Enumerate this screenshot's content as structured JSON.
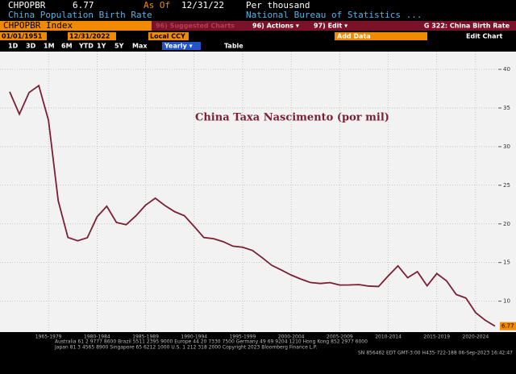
{
  "header": {
    "ticker": "CHPOPBR",
    "last": "6.77",
    "as_of_label": "As Of",
    "as_of": "12/31/22",
    "units": "Per thousand",
    "name": "China Population Birth Rate",
    "source": "National Bureau of Statistics ...",
    "security": "CHPOPBR Index",
    "suggested": "96) Suggested Charts",
    "actions": "96) Actions ▾",
    "edit": "97) Edit ▾",
    "page": "G 322: China Birth Rate"
  },
  "toolbar": {
    "start": "01/01/1951",
    "end": "12/31/2022",
    "currency": "Local CCY",
    "periods": [
      "1D",
      "3D",
      "1M",
      "6M",
      "YTD",
      "1Y",
      "5Y",
      "Max"
    ],
    "frequency": "Yearly ▾",
    "table": "Table",
    "add_data": "Add Data",
    "edit_chart": "Edit Chart"
  },
  "footer": {
    "line1": "Australia 61 2 9777 8600 Brazil 5511 2395 9000 Europe 44 20 7330 7500 Germany 49 69 9204 1210 Hong Kong 852 2977 6000",
    "line2": "Japan 81 3 4565 8900 Singapore 65 6212 1000 U.S. 1 212 318 2000 Copyright 2023 Bloomberg Finance L.P.",
    "line3": "SN 856462 EDT GMT-3:00 H435-722-188 06-Sep-2023 16:42:47"
  },
  "chart_data": {
    "type": "line",
    "annotation": "China Taxa Nascimento (por mil)",
    "categories": [
      null,
      null,
      null,
      null,
      "1965-1979",
      null,
      null,
      null,
      null,
      "1980-1984",
      null,
      null,
      null,
      null,
      "1985-1989",
      null,
      null,
      null,
      null,
      "1990-1994",
      null,
      null,
      null,
      null,
      "1995-1999",
      null,
      null,
      null,
      null,
      "2000-2004",
      null,
      null,
      null,
      null,
      "2005-2009",
      null,
      null,
      null,
      null,
      "2010-2014",
      null,
      null,
      null,
      null,
      "2015-2019",
      null,
      null,
      null,
      "2020-2024",
      null,
      null
    ],
    "series": [
      {
        "name": "CHPOPBR Index",
        "color": "#7a1f35",
        "values": [
          37.1,
          34.2,
          37.0,
          37.9,
          33.4,
          23.0,
          18.25,
          17.82,
          18.21,
          20.91,
          22.28,
          20.19,
          19.9,
          21.04,
          22.43,
          23.33,
          22.37,
          21.58,
          21.06,
          19.68,
          18.24,
          18.09,
          17.7,
          17.12,
          16.98,
          16.57,
          15.64,
          14.64,
          14.03,
          13.38,
          12.86,
          12.41,
          12.29,
          12.4,
          12.09,
          12.1,
          12.14,
          11.95,
          11.9,
          13.27,
          14.57,
          13.03,
          13.83,
          11.99,
          13.57,
          12.64,
          10.86,
          10.41,
          8.52,
          7.52,
          6.77
        ]
      }
    ],
    "last_label": "6.77",
    "ylim": [
      6,
      42.3
    ],
    "yticks": [
      10,
      15,
      20,
      25,
      30,
      35,
      40
    ],
    "grid": true
  }
}
